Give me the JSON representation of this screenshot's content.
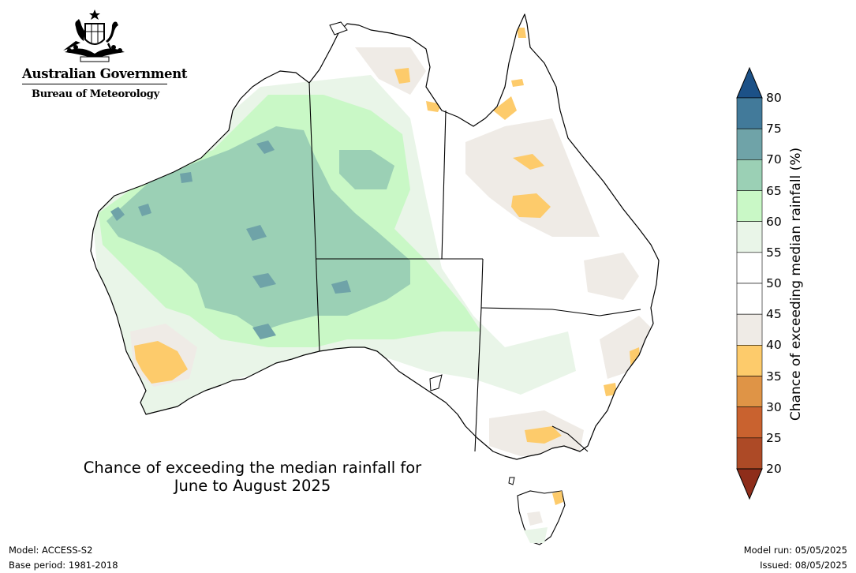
{
  "branding": {
    "government": "Australian Government",
    "bureau": "Bureau of Meteorology"
  },
  "map": {
    "title_line1": "Chance of exceeding the median rainfall for",
    "title_line2": "June to August 2025",
    "region": "Australia"
  },
  "legend": {
    "title": "Chance of exceeding median rainfall (%)",
    "ticks": [
      "20",
      "25",
      "30",
      "35",
      "40",
      "45",
      "50",
      "55",
      "60",
      "65",
      "70",
      "75",
      "80"
    ],
    "bins": [
      {
        "range": "<20",
        "color": "#8e2d1a"
      },
      {
        "range": "20-25",
        "color": "#ad4a26"
      },
      {
        "range": "25-30",
        "color": "#c9622f"
      },
      {
        "range": "30-35",
        "color": "#df9446"
      },
      {
        "range": "35-40",
        "color": "#fdcb6b"
      },
      {
        "range": "40-45",
        "color": "#efebe6"
      },
      {
        "range": "45-50",
        "color": "#ffffff"
      },
      {
        "range": "50-55",
        "color": "#ffffff"
      },
      {
        "range": "55-60",
        "color": "#e9f5e8"
      },
      {
        "range": "60-65",
        "color": "#c9f8c6"
      },
      {
        "range": "65-70",
        "color": "#9bd0b5"
      },
      {
        "range": "70-75",
        "color": "#6fa3a8"
      },
      {
        "range": "75-80",
        "color": "#427a9a"
      },
      {
        "range": ">80",
        "color": "#1c5187"
      }
    ]
  },
  "footer": {
    "model": "Model: ACCESS-S2",
    "base_period": "Base period: 1981-2018",
    "model_run": "Model run: 05/05/2025",
    "issued": "Issued: 08/05/2025"
  }
}
